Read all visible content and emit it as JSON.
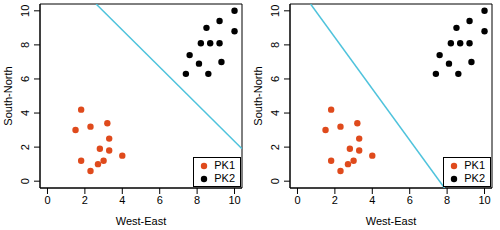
{
  "chart_data": [
    {
      "type": "scatter",
      "xlabel": "West-East",
      "ylabel": "South-North",
      "xlim": [
        -0.4,
        10.4
      ],
      "ylim": [
        -0.4,
        10.4
      ],
      "xticks": [
        0,
        2,
        4,
        6,
        8,
        10
      ],
      "yticks": [
        0,
        2,
        4,
        6,
        8,
        10
      ],
      "legend": "bottom-right",
      "series": [
        {
          "name": "PK1",
          "color": "#df4a1c",
          "marker": "circle",
          "x": [
            1.8,
            1.5,
            2.3,
            3.2,
            3.3,
            2.8,
            3.3,
            4.0,
            3.0,
            2.7,
            2.3,
            1.8
          ],
          "y": [
            4.2,
            3.0,
            3.2,
            3.4,
            2.5,
            1.9,
            1.8,
            1.5,
            1.2,
            1.0,
            0.6,
            1.2
          ]
        },
        {
          "name": "PK2",
          "color": "#000000",
          "marker": "circle",
          "x": [
            8.5,
            9.2,
            10.0,
            7.6,
            8.2,
            8.7,
            9.2,
            10.0,
            8.1,
            7.4,
            8.6,
            9.3
          ],
          "y": [
            9.0,
            9.4,
            10.0,
            7.4,
            8.1,
            8.1,
            8.1,
            8.8,
            6.9,
            6.3,
            6.3,
            7.0
          ]
        }
      ],
      "line": {
        "x": [
          2.6,
          10.4
        ],
        "y": [
          10.4,
          1.9
        ],
        "color": "#4fc3dc"
      }
    },
    {
      "type": "scatter",
      "xlabel": "West-East",
      "ylabel": "South-North",
      "xlim": [
        -0.4,
        10.4
      ],
      "ylim": [
        -0.4,
        10.4
      ],
      "xticks": [
        0,
        2,
        4,
        6,
        8,
        10
      ],
      "yticks": [
        0,
        2,
        4,
        6,
        8,
        10
      ],
      "legend": "bottom-right",
      "series": [
        {
          "name": "PK1",
          "color": "#df4a1c",
          "marker": "circle",
          "x": [
            1.8,
            1.5,
            2.3,
            3.2,
            3.3,
            2.8,
            3.3,
            4.0,
            3.0,
            2.7,
            2.3,
            1.8
          ],
          "y": [
            4.2,
            3.0,
            3.2,
            3.4,
            2.5,
            1.9,
            1.8,
            1.5,
            1.2,
            1.0,
            0.6,
            1.2
          ]
        },
        {
          "name": "PK2",
          "color": "#000000",
          "marker": "circle",
          "x": [
            8.5,
            9.2,
            10.0,
            7.6,
            8.2,
            8.7,
            9.2,
            10.0,
            8.1,
            7.4,
            8.6,
            9.3
          ],
          "y": [
            9.0,
            9.4,
            10.0,
            7.4,
            8.1,
            8.1,
            8.1,
            8.8,
            6.9,
            6.3,
            6.3,
            7.0
          ]
        }
      ],
      "line": {
        "x": [
          0.7,
          7.86
        ],
        "y": [
          10.4,
          -0.4
        ],
        "color": "#4fc3dc"
      }
    }
  ]
}
